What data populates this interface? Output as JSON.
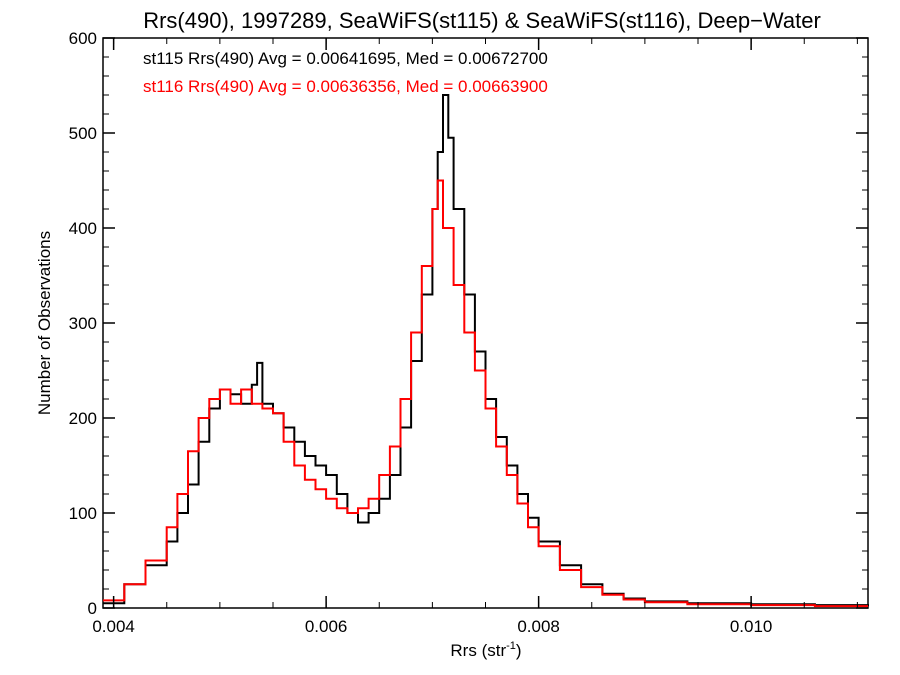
{
  "chart_data": {
    "type": "line",
    "step": true,
    "title": "Rrs(490), 1997289, SeaWiFS(st115) & SeaWiFS(st116), Deep−Water",
    "xlabel": "Rrs (str",
    "xlabel_sup": "-1",
    "xlabel_end": ")",
    "ylabel": "Number of Observations",
    "xlim": [
      0.0039,
      0.0111
    ],
    "ylim": [
      0,
      600
    ],
    "x_ticks": [
      0.004,
      0.006,
      0.008,
      0.01
    ],
    "x_tick_labels": [
      "0.004",
      "0.006",
      "0.008",
      "0.010"
    ],
    "y_ticks": [
      0,
      100,
      200,
      300,
      400,
      500,
      600
    ],
    "y_tick_labels": [
      "0",
      "100",
      "200",
      "300",
      "400",
      "500",
      "600"
    ],
    "annotations": [
      {
        "text": "st115 Rrs(490) Avg = 0.00641695, Med = 0.00672700",
        "color": "#000000"
      },
      {
        "text": "st116 Rrs(490) Avg = 0.00636356, Med = 0.00663900",
        "color": "#ff0000"
      }
    ],
    "series": [
      {
        "color": "#000000",
        "x": [
          0.0039,
          0.0041,
          0.0043,
          0.0045,
          0.0046,
          0.0047,
          0.0048,
          0.0049,
          0.005,
          0.0051,
          0.0052,
          0.0053,
          0.00535,
          0.0054,
          0.0055,
          0.0056,
          0.0057,
          0.0058,
          0.0059,
          0.006,
          0.0061,
          0.0062,
          0.0063,
          0.0064,
          0.0065,
          0.0066,
          0.0067,
          0.0068,
          0.0069,
          0.007,
          0.00705,
          0.0071,
          0.00715,
          0.0072,
          0.0073,
          0.0074,
          0.0075,
          0.0076,
          0.0077,
          0.0078,
          0.0079,
          0.008,
          0.0082,
          0.0084,
          0.0086,
          0.0088,
          0.009,
          0.0094,
          0.01,
          0.0106,
          0.0111
        ],
        "y": [
          5,
          25,
          45,
          70,
          100,
          130,
          175,
          210,
          230,
          225,
          215,
          235,
          258,
          215,
          205,
          190,
          175,
          160,
          150,
          140,
          120,
          100,
          90,
          100,
          115,
          140,
          190,
          260,
          330,
          420,
          480,
          540,
          495,
          420,
          330,
          270,
          220,
          180,
          150,
          120,
          95,
          70,
          45,
          25,
          15,
          10,
          7,
          5,
          4,
          3,
          2
        ]
      },
      {
        "color": "#ff0000",
        "x": [
          0.0039,
          0.0041,
          0.0043,
          0.0045,
          0.0046,
          0.0047,
          0.0048,
          0.0049,
          0.005,
          0.0051,
          0.0052,
          0.0053,
          0.0054,
          0.0055,
          0.0056,
          0.0057,
          0.0058,
          0.0059,
          0.006,
          0.0061,
          0.0062,
          0.0063,
          0.0064,
          0.0065,
          0.0066,
          0.0067,
          0.0068,
          0.0069,
          0.007,
          0.00705,
          0.0071,
          0.0072,
          0.0073,
          0.0074,
          0.0075,
          0.0076,
          0.0077,
          0.0078,
          0.0079,
          0.008,
          0.0082,
          0.0084,
          0.0086,
          0.0088,
          0.009,
          0.0094,
          0.01,
          0.0106,
          0.0111
        ],
        "y": [
          8,
          25,
          50,
          85,
          120,
          165,
          200,
          220,
          230,
          215,
          230,
          215,
          210,
          205,
          175,
          150,
          135,
          125,
          115,
          105,
          100,
          105,
          115,
          140,
          170,
          220,
          290,
          360,
          420,
          450,
          400,
          340,
          290,
          250,
          210,
          170,
          140,
          110,
          85,
          65,
          40,
          22,
          14,
          9,
          6,
          4,
          3,
          2,
          2
        ]
      }
    ]
  }
}
